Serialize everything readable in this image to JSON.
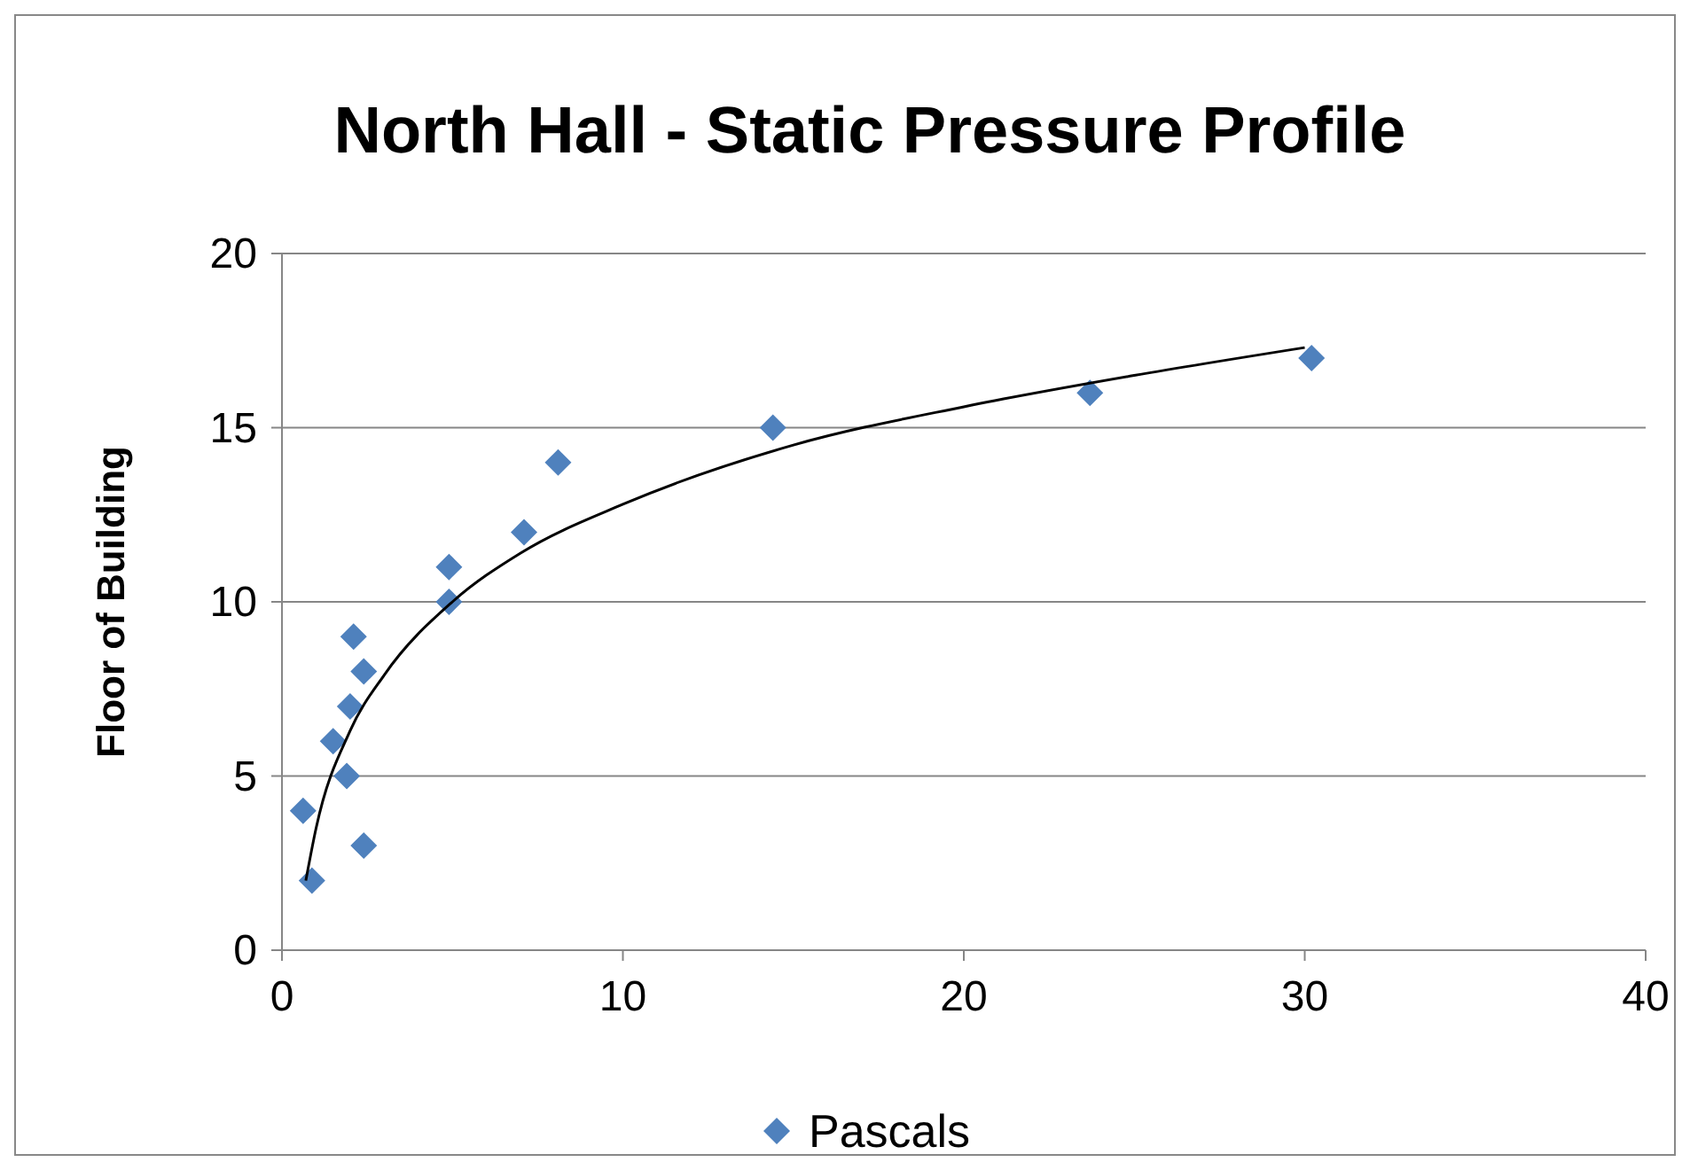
{
  "chart_data": {
    "type": "scatter",
    "title": "North Hall - Static Pressure Profile",
    "ylabel": "Floor of Building",
    "xlim": [
      0,
      40
    ],
    "xticks": [
      0,
      10,
      20,
      30,
      40
    ],
    "ylim": [
      0,
      20
    ],
    "yticks": [
      0,
      5,
      10,
      15,
      20
    ],
    "grid": "y",
    "legend": "bottom",
    "marker": "diamond",
    "series": [
      {
        "name": "Pascals",
        "color": "#4f81bd",
        "x": [
          0.62,
          0.88,
          1.5,
          1.9,
          2.0,
          2.1,
          2.4,
          2.4,
          4.9,
          4.9,
          7.1,
          8.1,
          14.4,
          23.7,
          30.2
        ],
        "values": [
          4,
          2,
          6,
          5,
          7,
          9,
          8,
          3,
          10,
          11,
          12,
          14,
          15,
          16,
          17
        ]
      },
      {
        "type": "line",
        "color": "#000000",
        "marker": "none",
        "line_style": "solid",
        "x": [
          0.7,
          1,
          2,
          3,
          5,
          7,
          10,
          15,
          20,
          25,
          30
        ],
        "values": [
          2.0,
          3.5,
          6.3,
          7.9,
          10.0,
          11.4,
          12.8,
          14.5,
          15.6,
          16.5,
          17.3
        ]
      }
    ]
  }
}
